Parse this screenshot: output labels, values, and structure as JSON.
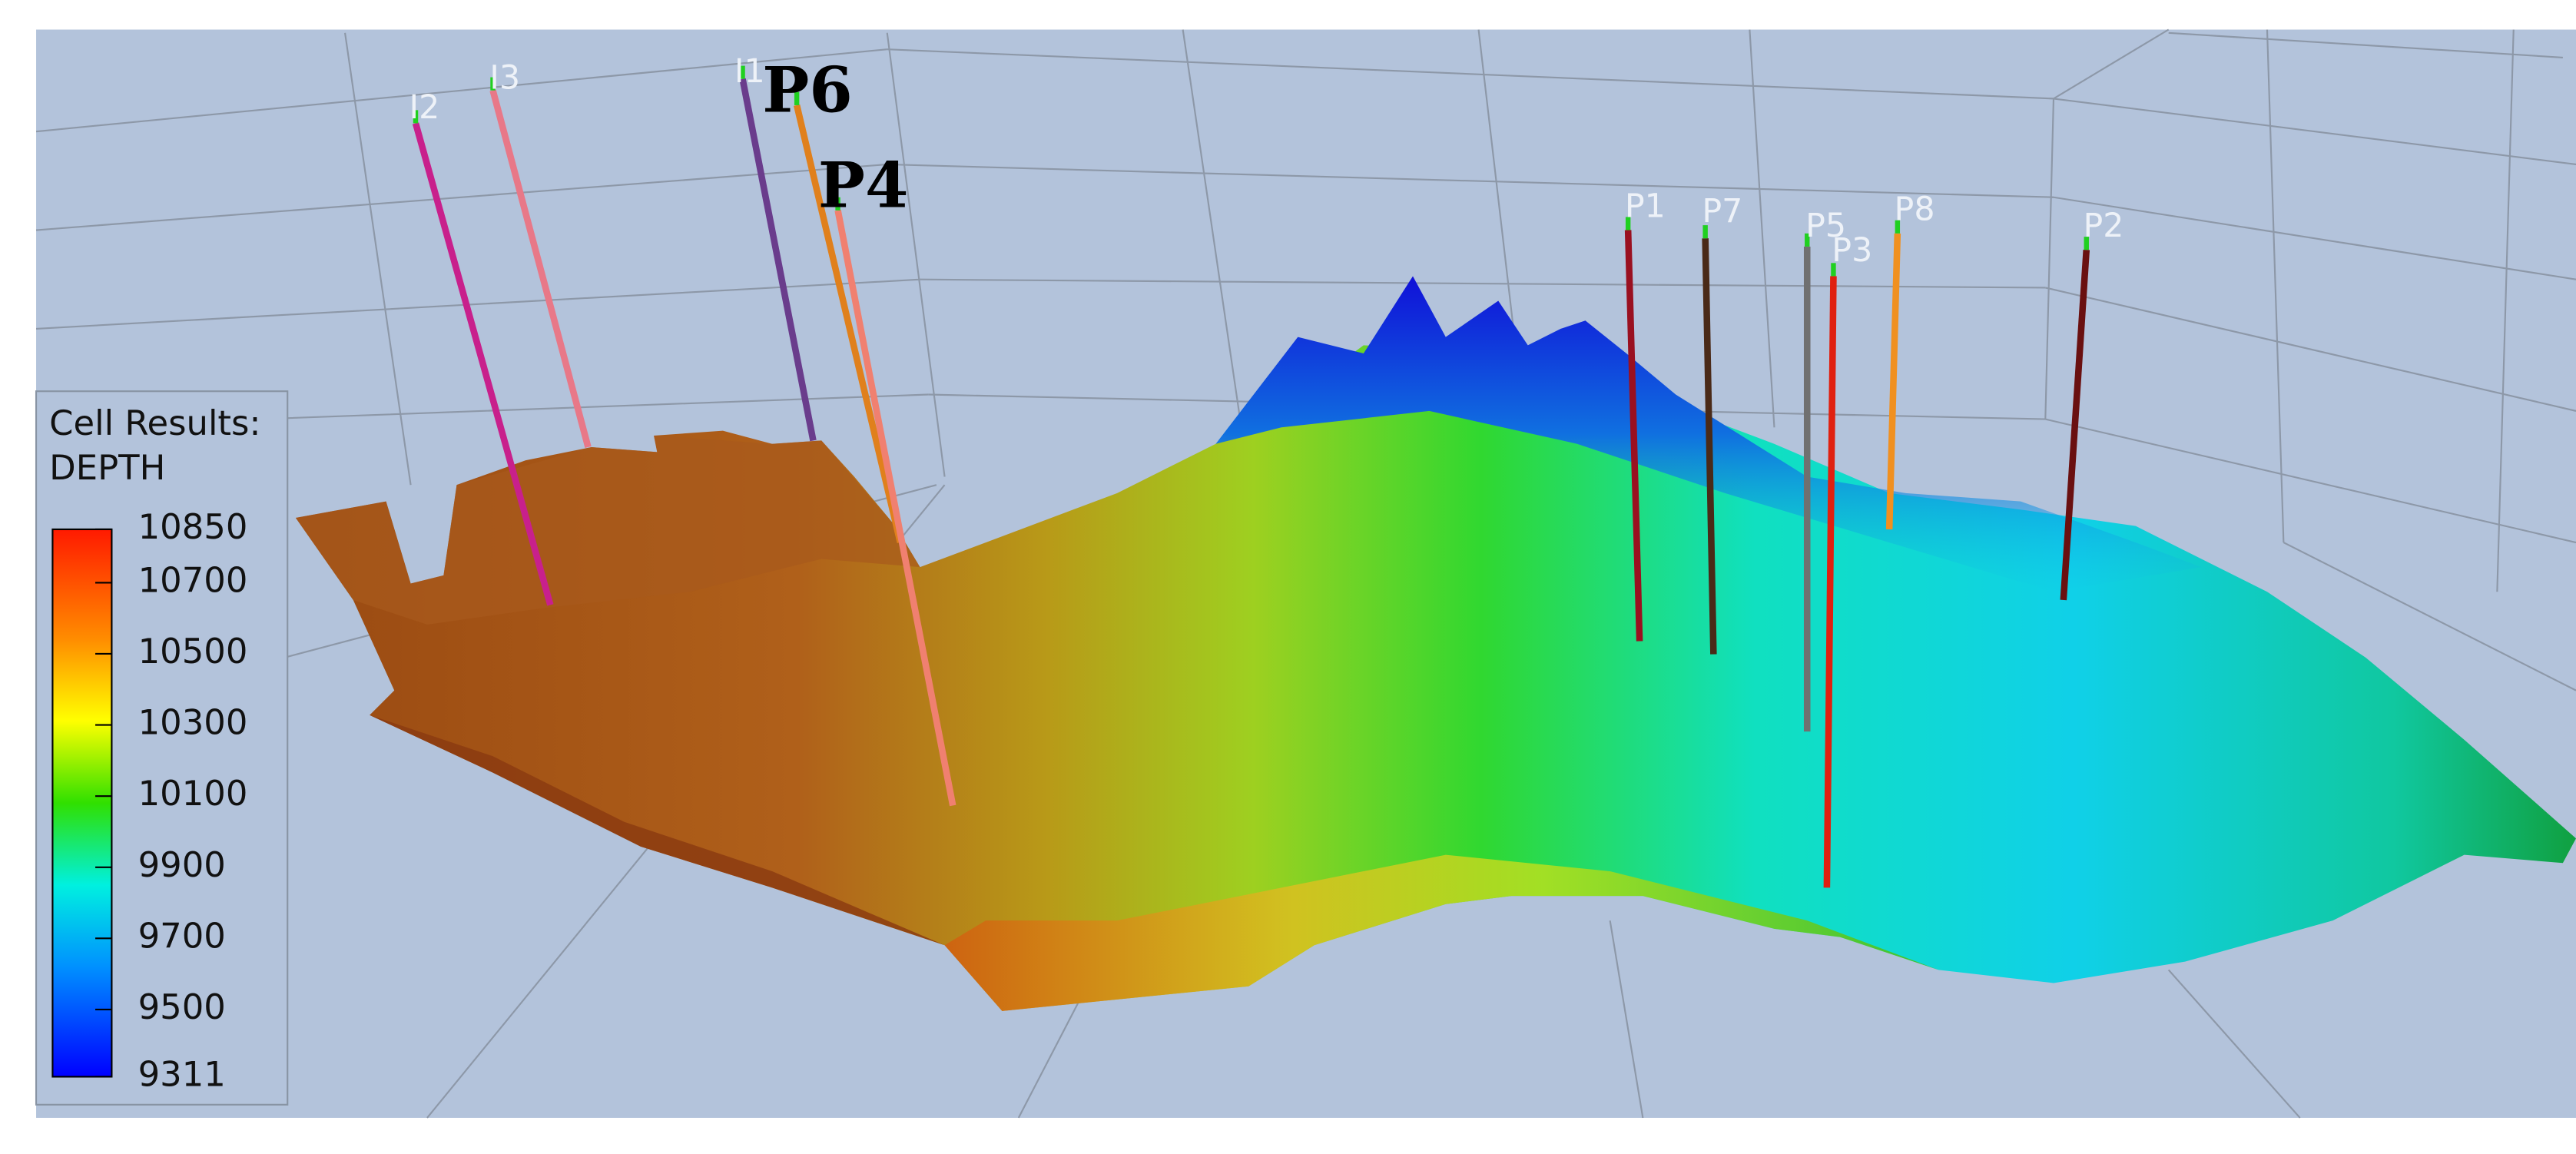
{
  "legend": {
    "title": [
      "Cell Results:",
      "DEPTH"
    ],
    "range": [
      9311,
      10850
    ],
    "ticks": [
      10850,
      10700,
      10500,
      10300,
      10100,
      9900,
      9700,
      9500,
      9311
    ]
  },
  "wells": [
    "I2",
    "I3",
    "I1",
    "P6",
    "P4",
    "P1",
    "P7",
    "P5",
    "P3",
    "P8",
    "P2"
  ]
}
